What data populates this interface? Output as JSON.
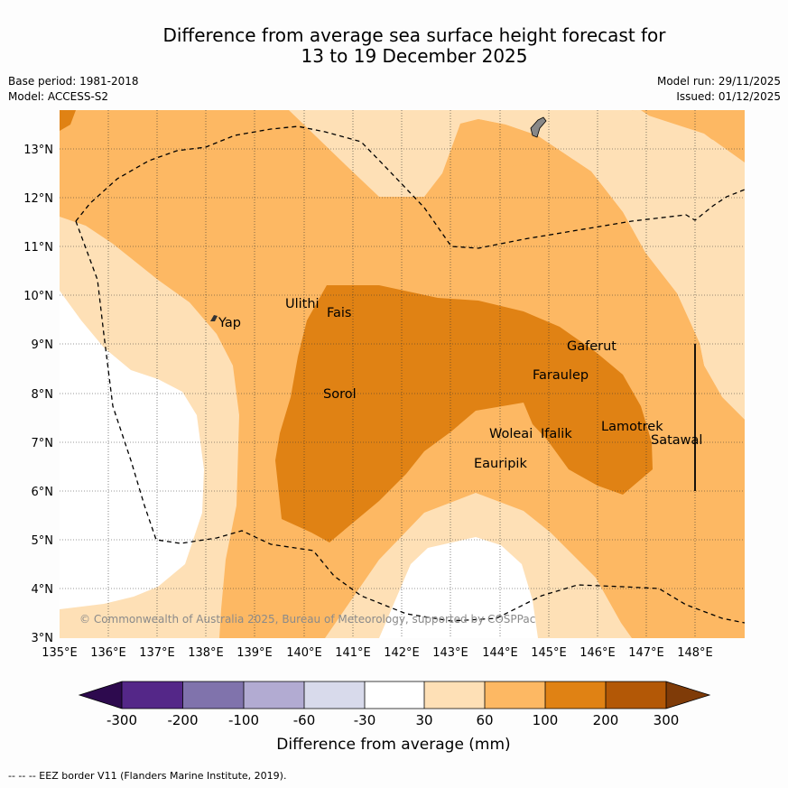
{
  "title": {
    "line1": "Difference from average sea surface height forecast for",
    "line2": "13 to 19 December 2025"
  },
  "meta_left": {
    "base_period": "Base period: 1981-2018",
    "model": "Model: ACCESS-S2"
  },
  "meta_right": {
    "model_run": "Model run: 29/11/2025",
    "issued": "Issued: 01/12/2025"
  },
  "map": {
    "lat_labels": [
      "13°N",
      "12°N",
      "11°N",
      "10°N",
      "9°N",
      "8°N",
      "7°N",
      "6°N",
      "5°N",
      "4°N",
      "3°N"
    ],
    "lon_labels": [
      "135°E",
      "136°E",
      "137°E",
      "138°E",
      "139°E",
      "140°E",
      "141°E",
      "142°E",
      "143°E",
      "144°E",
      "145°E",
      "146°E",
      "147°E",
      "148°E"
    ],
    "places": {
      "yap": "Yap",
      "ulithi": "Ulithi",
      "fais": "Fais",
      "gaferut": "Gaferut",
      "faraulep": "Faraulep",
      "sorol": "Sorol",
      "lamotrek": "Lamotrek",
      "satawal": "Satawal",
      "woleai": "Woleai",
      "ifalik": "Ifalik",
      "eauripik": "Eauripik"
    },
    "copyright": "© Commonwealth of Australia 2025, Bureau of Meteorology, supported by COSPPac"
  },
  "colorbar": {
    "labels": [
      "-300",
      "-200",
      "-100",
      "-60",
      "-30",
      "30",
      "60",
      "100",
      "200",
      "300"
    ],
    "title": "Difference from average (mm)",
    "colors": {
      "below_min": "#2d0a4e",
      "neg_300_200": "#542788",
      "neg_200_100": "#8073ac",
      "neg_100_60": "#b2abd2",
      "neg_60_30": "#d8daeb",
      "neutral": "#ffffff",
      "pos_30_60": "#fee0b6",
      "pos_60_100": "#fdb863",
      "pos_100_200": "#e08214",
      "pos_200_300": "#b35806",
      "above_max": "#7f3b08"
    }
  },
  "footer": "--  --  -- EEZ border V11 (Flanders Marine Institute, 2019)."
}
